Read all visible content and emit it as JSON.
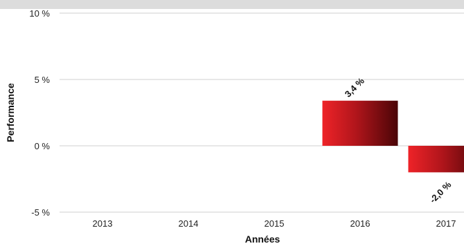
{
  "chart_data": {
    "type": "bar",
    "categories": [
      "2013",
      "2014",
      "2015",
      "2016",
      "2017"
    ],
    "values": [
      null,
      null,
      null,
      3.4,
      -2.0
    ],
    "data_labels": [
      "",
      "",
      "",
      "3,4 %",
      "-2,0 %"
    ],
    "xlabel": "Années",
    "ylabel": "Performance",
    "ylim": [
      -5,
      10
    ],
    "yticks": [
      -5,
      0,
      5,
      10
    ],
    "ytick_labels": [
      "-5 %",
      "0 %",
      "5 %",
      "10 %"
    ],
    "grid": true,
    "bar_gradient": [
      "#ee2328",
      "#4a0507"
    ]
  }
}
